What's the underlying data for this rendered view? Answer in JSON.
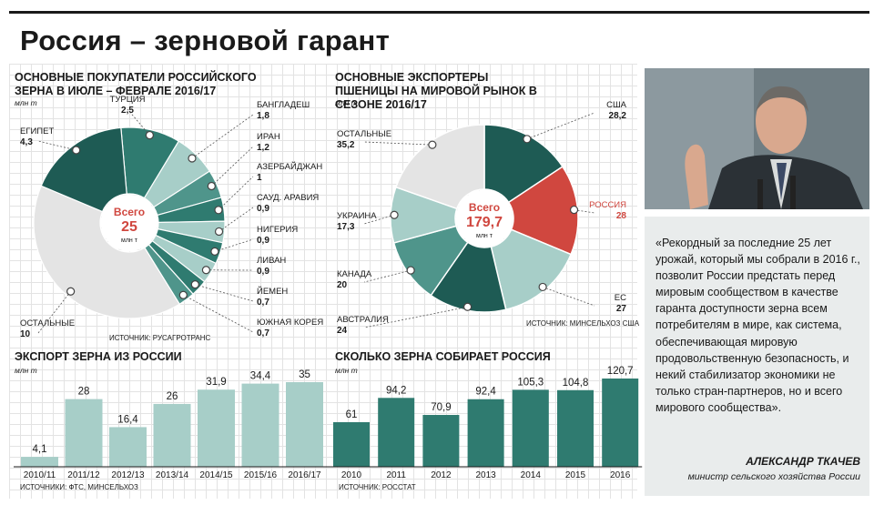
{
  "page_title": "Россия – зерновой гарант",
  "chart_data": [
    {
      "type": "pie",
      "title": "Основные покупатели российского зерна в июле – феврале 2016/17",
      "unit": "млн т",
      "center_label": "Всего",
      "center_value": "25",
      "center_unit": "млн т",
      "source": "Источник: Русагротранс",
      "slices": [
        {
          "name": "Турция",
          "value": 2.5,
          "label": "2,5",
          "color": "#2f7b70"
        },
        {
          "name": "Бангладеш",
          "value": 1.8,
          "label": "1,8",
          "color": "#a7cec8"
        },
        {
          "name": "Иран",
          "value": 1.2,
          "label": "1,2",
          "color": "#4f958b"
        },
        {
          "name": "Азербайджан",
          "value": 1,
          "label": "1",
          "color": "#2f7b70"
        },
        {
          "name": "Сауд. Аравия",
          "value": 0.9,
          "label": "0,9",
          "color": "#a7cec8"
        },
        {
          "name": "Нигерия",
          "value": 0.9,
          "label": "0,9",
          "color": "#2f7b70"
        },
        {
          "name": "Ливан",
          "value": 0.9,
          "label": "0,9",
          "color": "#a7cec8"
        },
        {
          "name": "Йемен",
          "value": 0.7,
          "label": "0,7",
          "color": "#2f7b70"
        },
        {
          "name": "Южная Корея",
          "value": 0.7,
          "label": "0,7",
          "color": "#4f958b"
        },
        {
          "name": "остальные",
          "value": 10,
          "label": "10",
          "color": "#e4e4e4"
        },
        {
          "name": "Египет",
          "value": 4.3,
          "label": "4,3",
          "color": "#1e5b54"
        }
      ]
    },
    {
      "type": "pie",
      "title": "Основные экспортеры пшеницы на мировой рынок в сезоне 2016/17",
      "unit": "млн т",
      "center_label": "Всего",
      "center_value": "179,7",
      "center_unit": "млн т",
      "source": "Источник: Минсельхоз США",
      "slices": [
        {
          "name": "США",
          "value": 28.2,
          "label": "28,2",
          "color": "#1e5b54"
        },
        {
          "name": "Россия",
          "value": 28,
          "label": "28",
          "color": "#d0473f"
        },
        {
          "name": "ЕС",
          "value": 27,
          "label": "27",
          "color": "#a7cec8"
        },
        {
          "name": "Австралия",
          "value": 24,
          "label": "24",
          "color": "#1e5b54"
        },
        {
          "name": "Канада",
          "value": 20,
          "label": "20",
          "color": "#4f958b"
        },
        {
          "name": "Украина",
          "value": 17.3,
          "label": "17,3",
          "color": "#a7cec8"
        },
        {
          "name": "остальные",
          "value": 35.2,
          "label": "35,2",
          "color": "#e4e4e4"
        }
      ]
    },
    {
      "type": "bar",
      "title": "Экспорт зерна из России",
      "unit": "млн т",
      "source": "Источники: ФТС, Минсельхоз",
      "color": "#a7cec8",
      "categories": [
        "2010/11",
        "2011/12",
        "2012/13",
        "2013/14",
        "2014/15",
        "2015/16",
        "2016/17"
      ],
      "values": [
        4.1,
        28,
        16.4,
        26,
        31.9,
        34.4,
        35
      ],
      "labels": [
        "4,1",
        "28",
        "16,4",
        "26",
        "31,9",
        "34,4",
        "35"
      ],
      "ylim": [
        0,
        35
      ]
    },
    {
      "type": "bar",
      "title": "Сколько зерна собирает Россия",
      "unit": "млн т",
      "source": "Источник: Росстат",
      "color": "#2f7b70",
      "categories": [
        "2010",
        "2011",
        "2012",
        "2013",
        "2014",
        "2015",
        "2016"
      ],
      "values": [
        61,
        94.2,
        70.9,
        92.4,
        105.3,
        104.8,
        120.7
      ],
      "labels": [
        "61",
        "94,2",
        "70,9",
        "92,4",
        "105,3",
        "104,8",
        "120,7"
      ],
      "ylim": [
        0,
        120.7
      ]
    }
  ],
  "quote": {
    "text": "«Рекордный за последние 25 лет урожай, который мы собрали в 2016 г., позволит России предстать перед мировым сообществом в качестве гаранта доступности зерна всем потребителям в мире, как система, обеспечивающая мировую продовольственную безопасность, и некий стабилизатор экономики не только стран-партнеров, но и всего мирового сообщества».",
    "author": "Александр Ткачев",
    "role": "министр сельского хозяйства России"
  }
}
